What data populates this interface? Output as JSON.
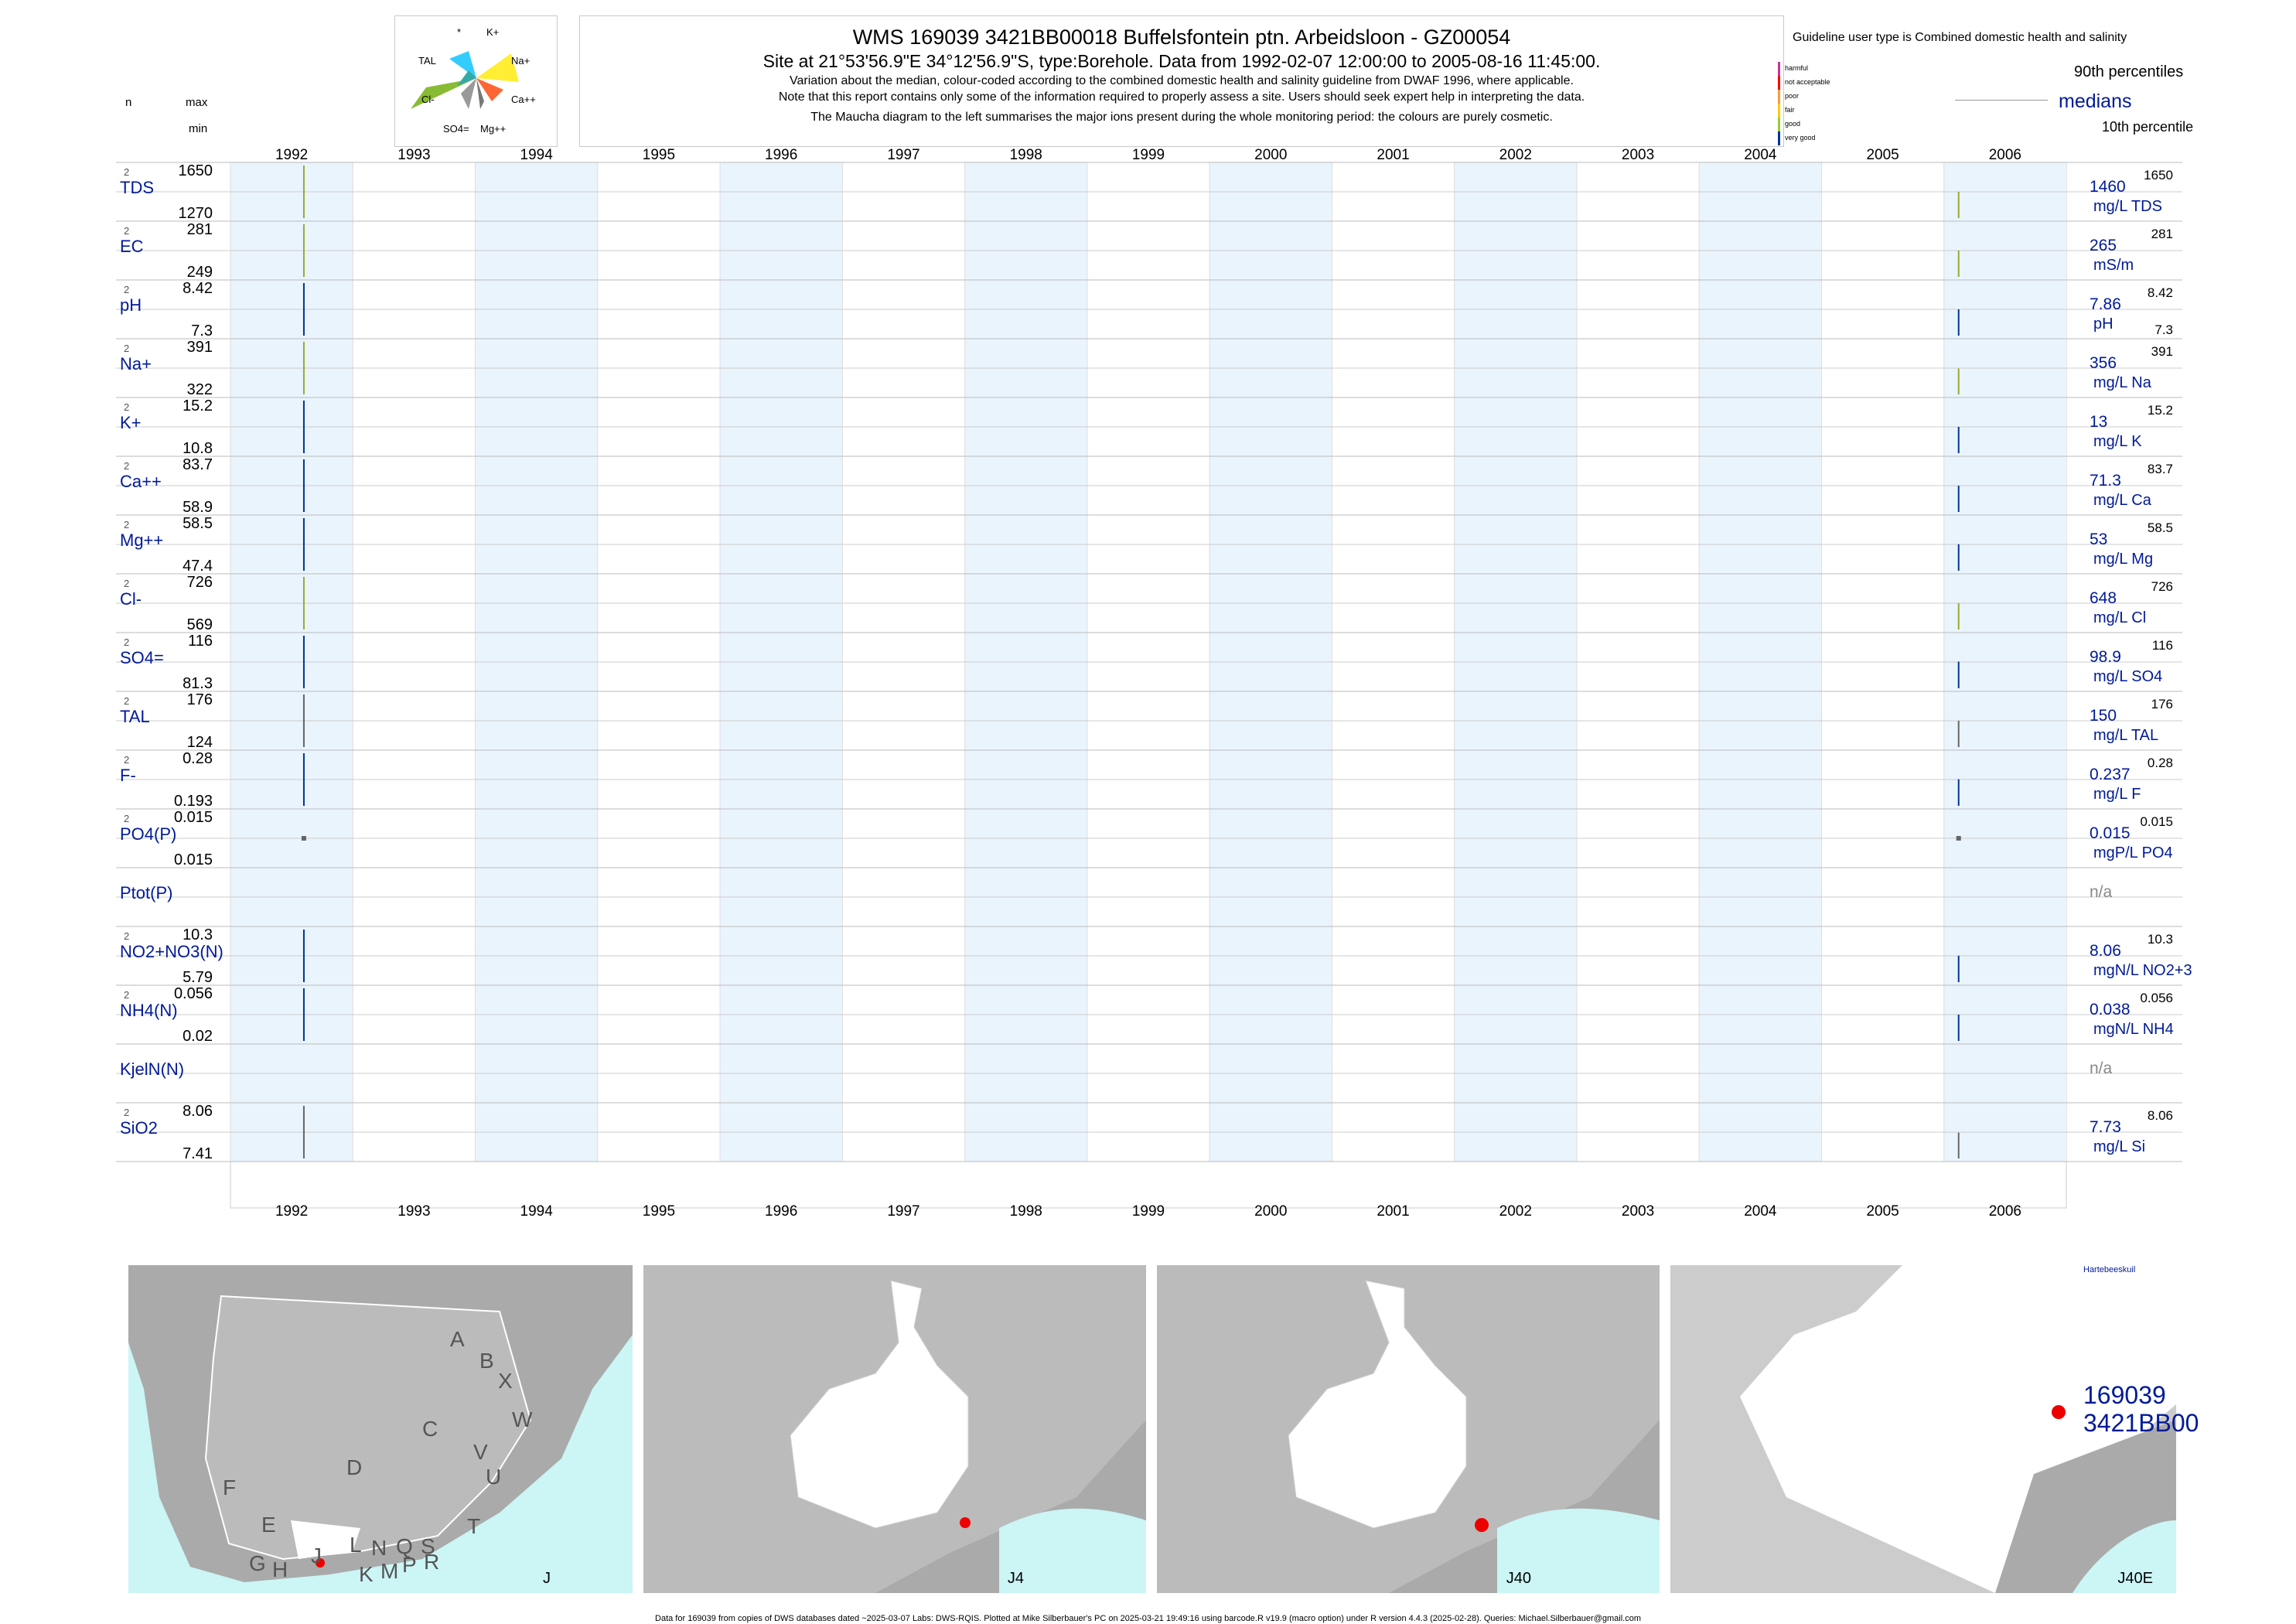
{
  "title": "WMS 169039 3421BB00018 Buffelsfontein ptn. Arbeidsloon - GZ00054",
  "subtitle": "Site at 21°53'56.9\"E 34°12'56.9\"S, type:Borehole.  Data from 1992-02-07 12:00:00 to 2005-08-16 11:45:00.",
  "note1": "Variation about the median,  colour-coded according to the combined domestic health and salinity guideline from DWAF 1996, where applicable.",
  "note2": "Note that this report contains only some of the information required to properly assess a site. Users should seek expert help in interpreting the data.",
  "note3": "The Maucha diagram to the left summarises the major ions present during the whole monitoring period: the colours are purely cosmetic.",
  "header": {
    "n": "n",
    "max": "max",
    "min": "min"
  },
  "guideline": {
    "title": "Guideline user type is Combined domestic health and salinity",
    "levels": [
      {
        "label": "harmful",
        "color": "#cc3399"
      },
      {
        "label": "not acceptable",
        "color": "#ff0000"
      },
      {
        "label": "poor",
        "color": "#ff9933"
      },
      {
        "label": "fair",
        "color": "#ffcc00"
      },
      {
        "label": "good",
        "color": "#99cc33"
      },
      {
        "label": "very good",
        "color": "#003399"
      }
    ],
    "p90": "90th percentiles",
    "medians": "medians",
    "p10": "10th percentile"
  },
  "maucha": {
    "labels": [
      "*",
      "K+",
      "TAL",
      "Na+",
      "Cl-",
      "Ca++",
      "SO4=",
      "Mg++"
    ]
  },
  "chart_data": {
    "type": "line",
    "x_years": [
      "1992",
      "1993",
      "1994",
      "1995",
      "1996",
      "1997",
      "1998",
      "1999",
      "2000",
      "2001",
      "2002",
      "2003",
      "2004",
      "2005",
      "2006"
    ],
    "x_range": [
      1991.5,
      2006.5
    ],
    "rows": [
      {
        "label": "TDS",
        "n": "2",
        "max": "1650",
        "min": "1270",
        "median": "1460",
        "unit": "mg/L TDS",
        "p90": "1650",
        "p10": "",
        "points": [
          [
            1992.1,
            1270,
            1650,
            "#99aa33"
          ],
          [
            2005.62,
            1270,
            1460,
            "#99aa33"
          ]
        ]
      },
      {
        "label": "EC",
        "n": "2",
        "max": "281",
        "min": "249",
        "median": "265",
        "unit": "mS/m",
        "p90": "281",
        "p10": "",
        "points": [
          [
            1992.1,
            249,
            281,
            "#99aa33"
          ],
          [
            2005.62,
            249,
            265,
            "#99aa33"
          ]
        ]
      },
      {
        "label": "pH",
        "n": "2",
        "max": "8.42",
        "min": "7.3",
        "median": "7.86",
        "unit": "pH",
        "p90": "8.42",
        "p10": "7.3",
        "points": [
          [
            1992.1,
            7.3,
            8.42,
            "#003399"
          ],
          [
            2005.62,
            7.3,
            7.86,
            "#003399"
          ]
        ]
      },
      {
        "label": "Na+",
        "n": "2",
        "max": "391",
        "min": "322",
        "median": "356",
        "unit": "mg/L Na",
        "p90": "391",
        "p10": "",
        "points": [
          [
            1992.1,
            322,
            391,
            "#99aa33"
          ],
          [
            2005.62,
            322,
            356,
            "#99aa33"
          ]
        ]
      },
      {
        "label": "K+",
        "n": "2",
        "max": "15.2",
        "min": "10.8",
        "median": "13",
        "unit": "mg/L K",
        "p90": "15.2",
        "p10": "",
        "points": [
          [
            1992.1,
            10.8,
            15.2,
            "#003399"
          ],
          [
            2005.62,
            10.8,
            13,
            "#003399"
          ]
        ]
      },
      {
        "label": "Ca++",
        "n": "2",
        "max": "83.7",
        "min": "58.9",
        "median": "71.3",
        "unit": "mg/L Ca",
        "p90": "83.7",
        "p10": "",
        "points": [
          [
            1992.1,
            58.9,
            83.7,
            "#003399"
          ],
          [
            2005.62,
            58.9,
            71.3,
            "#003399"
          ]
        ]
      },
      {
        "label": "Mg++",
        "n": "2",
        "max": "58.5",
        "min": "47.4",
        "median": "53",
        "unit": "mg/L Mg",
        "p90": "58.5",
        "p10": "",
        "points": [
          [
            1992.1,
            47.4,
            58.5,
            "#003399"
          ],
          [
            2005.62,
            47.4,
            53,
            "#003399"
          ]
        ]
      },
      {
        "label": "Cl-",
        "n": "2",
        "max": "726",
        "min": "569",
        "median": "648",
        "unit": "mg/L Cl",
        "p90": "726",
        "p10": "",
        "points": [
          [
            1992.1,
            569,
            726,
            "#99aa33"
          ],
          [
            2005.62,
            569,
            648,
            "#99aa33"
          ]
        ]
      },
      {
        "label": "SO4=",
        "n": "2",
        "max": "116",
        "min": "81.3",
        "median": "98.9",
        "unit": "mg/L SO4",
        "p90": "116",
        "p10": "",
        "points": [
          [
            1992.1,
            81.3,
            116,
            "#003399"
          ],
          [
            2005.62,
            81.3,
            98.9,
            "#003399"
          ]
        ]
      },
      {
        "label": "TAL",
        "n": "2",
        "max": "176",
        "min": "124",
        "median": "150",
        "unit": "mg/L TAL",
        "p90": "176",
        "p10": "",
        "points": [
          [
            1992.1,
            124,
            176,
            "#666666"
          ],
          [
            2005.62,
            124,
            150,
            "#666666"
          ]
        ]
      },
      {
        "label": "F-",
        "n": "2",
        "max": "0.28",
        "min": "0.193",
        "median": "0.237",
        "unit": "mg/L F",
        "p90": "0.28",
        "p10": "",
        "points": [
          [
            1992.1,
            0.193,
            0.28,
            "#003399"
          ],
          [
            2005.62,
            0.193,
            0.237,
            "#003399"
          ]
        ]
      },
      {
        "label": "PO4(P)",
        "n": "2",
        "max": "0.015",
        "min": "0.015",
        "median": "0.015",
        "unit": "mgP/L PO4",
        "p90": "0.015",
        "p10": "",
        "points": [
          [
            1992.1,
            0.015,
            0.015,
            "#666666"
          ],
          [
            2005.62,
            0.015,
            0.015,
            "#666666"
          ]
        ]
      },
      {
        "label": "Ptot(P)",
        "n": "",
        "max": "",
        "min": "",
        "median": "n/a",
        "unit": "",
        "p90": "",
        "p10": "",
        "points": []
      },
      {
        "label": "NO2+NO3(N)",
        "n": "2",
        "max": "10.3",
        "min": "5.79",
        "median": "8.06",
        "unit": "mgN/L NO2+3",
        "p90": "10.3",
        "p10": "",
        "points": [
          [
            1992.1,
            5.79,
            10.3,
            "#003399"
          ],
          [
            2005.62,
            5.79,
            8.06,
            "#003399"
          ]
        ]
      },
      {
        "label": "NH4(N)",
        "n": "2",
        "max": "0.056",
        "min": "0.02",
        "median": "0.038",
        "unit": "mgN/L NH4",
        "p90": "0.056",
        "p10": "",
        "points": [
          [
            1992.1,
            0.02,
            0.056,
            "#003399"
          ],
          [
            2005.62,
            0.02,
            0.038,
            "#003399"
          ]
        ]
      },
      {
        "label": "KjelN(N)",
        "n": "",
        "max": "",
        "min": "",
        "median": "n/a",
        "unit": "",
        "p90": "",
        "p10": "",
        "points": []
      },
      {
        "label": "SiO2",
        "n": "2",
        "max": "8.06",
        "min": "7.41",
        "median": "7.73",
        "unit": "mg/L Si",
        "p90": "8.06",
        "p10": "",
        "points": [
          [
            1992.1,
            7.41,
            8.06,
            "#666666"
          ],
          [
            2005.62,
            7.41,
            7.73,
            "#666666"
          ]
        ]
      }
    ]
  },
  "maps": {
    "m1": {
      "label": "J",
      "letters": [
        "A",
        "B",
        "X",
        "W",
        "C",
        "V",
        "U",
        "D",
        "T",
        "F",
        "E",
        "G",
        "H",
        "J",
        "L",
        "N",
        "Q",
        "S",
        "K",
        "M",
        "P",
        "R"
      ]
    },
    "m2": {
      "label": "J4"
    },
    "m3": {
      "label": "J40"
    },
    "m4": {
      "label": "J40E",
      "site_line1": "169039",
      "site_line2": "3421BB00",
      "town": "Hartebeeskuil"
    }
  },
  "footer": "Data for 169039 from copies of DWS databases dated ~2025-03-07 Labs: DWS-RQIS. Plotted at Mike Silberbauer's PC on 2025-03-21 19:49:16 using barcode.R v19.9 (macro option) under R version 4.4.3 (2025-02-28). Queries: Michael.Silberbauer@gmail.com"
}
